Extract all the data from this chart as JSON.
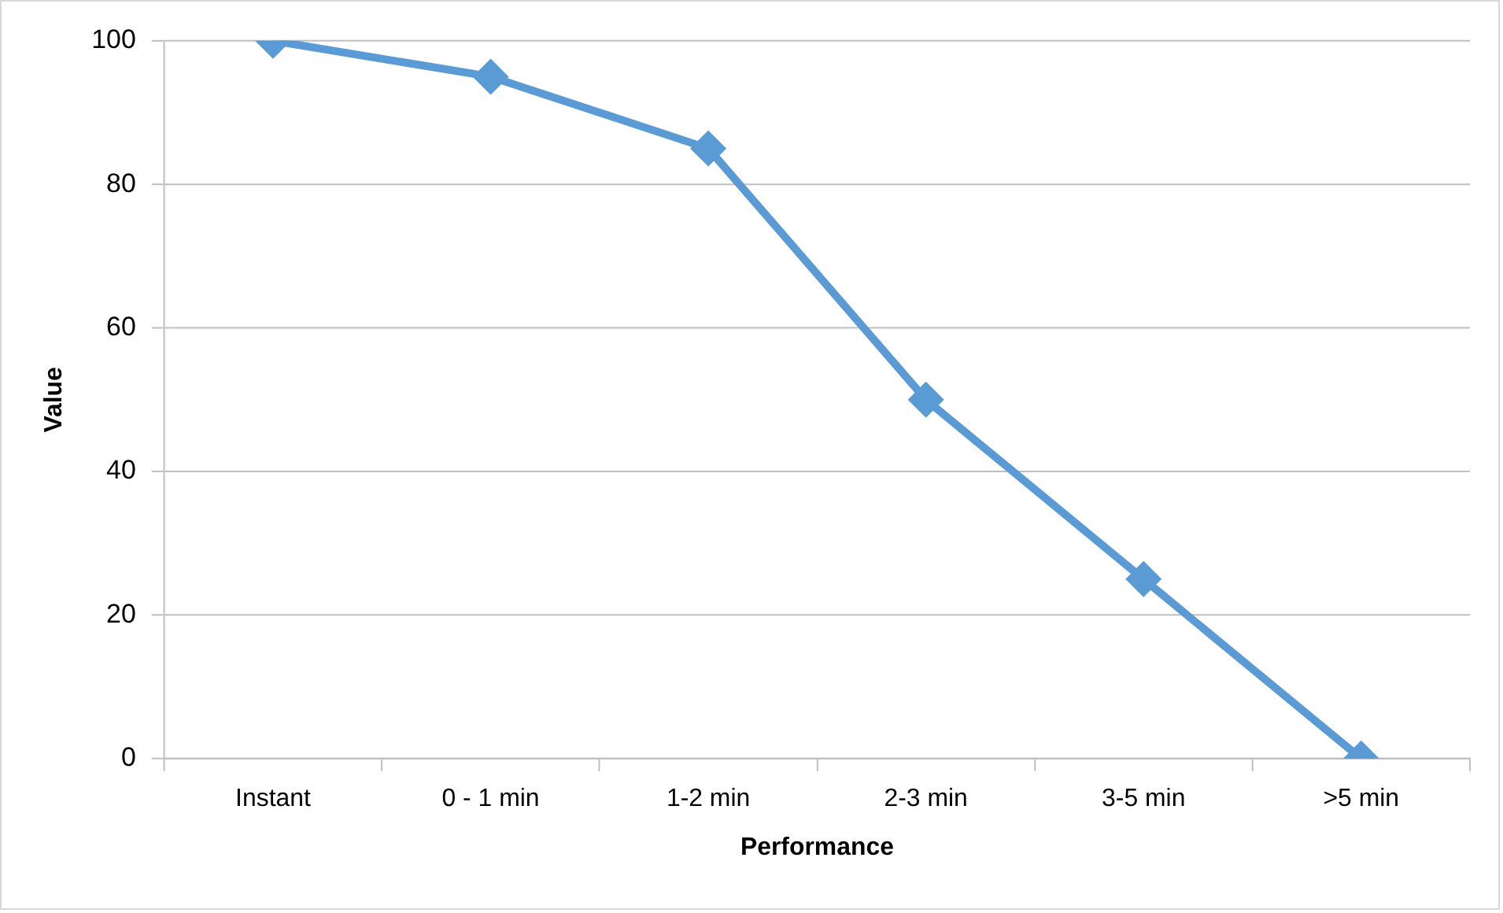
{
  "chart_data": {
    "type": "line",
    "xlabel": "Performance",
    "ylabel": "Value",
    "categories": [
      "Instant",
      "0 - 1 min",
      "1-2 min",
      "2-3 min",
      "3-5 min",
      ">5 min"
    ],
    "series": [
      {
        "color": "#5b9bd5",
        "values": [
          100,
          95,
          85,
          50,
          25,
          0
        ]
      }
    ],
    "ylim": [
      0,
      100
    ],
    "yticks": [
      0,
      20,
      40,
      60,
      80,
      100
    ],
    "grid": "y",
    "legend": false,
    "marker": "diamond",
    "line_style": "solid"
  }
}
